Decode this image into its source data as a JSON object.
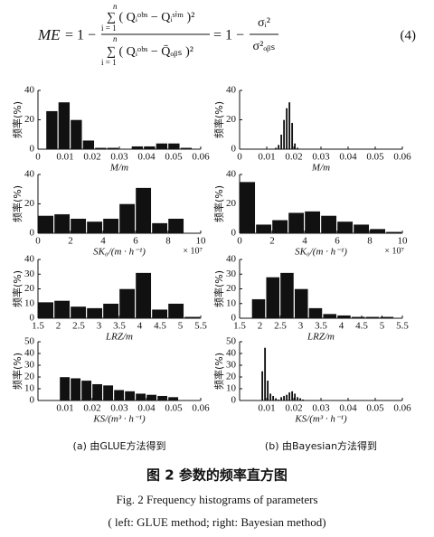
{
  "equation": {
    "lhs": "ME",
    "eq1": "= 1 −",
    "sum_upper": "n",
    "sum_lower": "i = 1",
    "numerator": "∑ ( Qᵢᵒᵇˢ −  Qᵢˢⁱᵐ )²",
    "denominator": "∑ ( Qᵢᵒᵇˢ −  Q̄ₒᵦₛ )²",
    "eq2": "= 1 −",
    "frac_num": "σᵢ²",
    "frac_den": "σ²ₒᵦₛ",
    "number": "(4)"
  },
  "chart_data": [
    {
      "type": "histogram",
      "xlabel": "M/m",
      "ylabel": "频率(%)",
      "color": "#111111",
      "bins": [
        0.003,
        0.0075,
        0.012,
        0.0165,
        0.021,
        0.0255,
        0.03,
        0.0345,
        0.039,
        0.0435,
        0.048,
        0.0525,
        0.057
      ],
      "values": [
        26,
        32,
        20,
        6,
        1,
        1,
        0,
        2,
        2,
        4,
        4,
        1
      ],
      "xlim": [
        0,
        0.06
      ],
      "ylim": [
        0,
        40
      ],
      "xticks": [
        0,
        0.01,
        0.02,
        0.03,
        0.04,
        0.05,
        0.06
      ],
      "yticks": [
        0,
        20,
        40
      ]
    },
    {
      "type": "histogram",
      "xlabel": "M/m",
      "ylabel": "频率(%)",
      "color": "#111111",
      "bins": [
        0.013,
        0.014,
        0.015,
        0.016,
        0.017,
        0.018,
        0.019,
        0.02,
        0.021,
        0.022
      ],
      "values": [
        1,
        3,
        10,
        20,
        28,
        32,
        18,
        4,
        1
      ],
      "xlim": [
        0,
        0.06
      ],
      "ylim": [
        0,
        40
      ],
      "xticks": [
        0,
        0.01,
        0.02,
        0.03,
        0.04,
        0.05,
        0.06
      ],
      "yticks": [
        0,
        20,
        40
      ]
    },
    {
      "type": "histogram",
      "xlabel": "SK₀/(m · h⁻¹)",
      "ylabel": "频率(%)",
      "x_multiplier": "× 10⁷",
      "color": "#111111",
      "bins": [
        0,
        1,
        2,
        3,
        4,
        5,
        6,
        7,
        8,
        9
      ],
      "values": [
        12,
        13,
        10,
        8,
        10,
        20,
        31,
        7,
        10
      ],
      "xlim": [
        0,
        10
      ],
      "ylim": [
        0,
        40
      ],
      "xticks": [
        0,
        2,
        4,
        6,
        8,
        10
      ],
      "yticks": [
        0,
        20,
        40
      ]
    },
    {
      "type": "histogram",
      "xlabel": "SK₀/(m · h⁻¹)",
      "ylabel": "频率(%)",
      "x_multiplier": "× 10⁷",
      "color": "#111111",
      "bins": [
        0,
        1,
        2,
        3,
        4,
        5,
        6,
        7,
        8,
        9,
        10
      ],
      "values": [
        35,
        6,
        9,
        14,
        15,
        12,
        8,
        6,
        3,
        1
      ],
      "xlim": [
        0,
        10
      ],
      "ylim": [
        0,
        40
      ],
      "xticks": [
        0,
        2,
        4,
        6,
        8,
        10
      ],
      "yticks": [
        0,
        20,
        40
      ]
    },
    {
      "type": "histogram",
      "xlabel": "LRZ/m",
      "ylabel": "频率(%)",
      "color": "#111111",
      "bins": [
        1.5,
        1.9,
        2.3,
        2.7,
        3.1,
        3.5,
        3.9,
        4.3,
        4.7,
        5.1,
        5.5
      ],
      "values": [
        11,
        12,
        8,
        7,
        10,
        20,
        31,
        6,
        10,
        1
      ],
      "xlim": [
        1.5,
        5.5
      ],
      "ylim": [
        0,
        40
      ],
      "xticks": [
        1.5,
        2,
        2.5,
        3,
        3.5,
        4,
        4.5,
        5,
        5.5
      ],
      "yticks": [
        0,
        10,
        20,
        30,
        40
      ]
    },
    {
      "type": "histogram",
      "xlabel": "LRZ/m",
      "ylabel": "频率(%)",
      "color": "#111111",
      "bins": [
        1.8,
        2.15,
        2.5,
        2.85,
        3.2,
        3.55,
        3.9,
        4.25,
        4.6,
        4.95,
        5.3
      ],
      "values": [
        13,
        28,
        31,
        20,
        7,
        3,
        2,
        1,
        1,
        1
      ],
      "xlim": [
        1.5,
        5.5
      ],
      "ylim": [
        0,
        40
      ],
      "xticks": [
        1.5,
        2,
        2.5,
        3,
        3.5,
        4,
        4.5,
        5,
        5.5
      ],
      "yticks": [
        0,
        10,
        20,
        30,
        40
      ]
    },
    {
      "type": "histogram",
      "xlabel": "KS/(m³ · h⁻¹)",
      "ylabel": "频率(%)",
      "color": "#111111",
      "bins": [
        0.008,
        0.012,
        0.016,
        0.02,
        0.024,
        0.028,
        0.032,
        0.036,
        0.04,
        0.044,
        0.048,
        0.052
      ],
      "values": [
        20,
        19,
        17,
        14,
        13,
        9,
        8,
        6,
        5,
        4,
        3
      ],
      "xlim": [
        0,
        0.06
      ],
      "ylim": [
        0,
        50
      ],
      "xticks": [
        0.01,
        0.02,
        0.03,
        0.04,
        0.05,
        0.06
      ],
      "yticks": [
        0,
        10,
        20,
        30,
        40,
        50
      ]
    },
    {
      "type": "histogram",
      "xlabel": "KS/(m³ · h⁻¹)",
      "ylabel": "频率(%)",
      "color": "#111111",
      "bins": [
        0.008,
        0.009,
        0.01,
        0.011,
        0.012,
        0.013,
        0.014,
        0.015,
        0.016,
        0.017,
        0.018,
        0.019,
        0.02,
        0.021,
        0.022,
        0.023,
        0.024
      ],
      "values": [
        25,
        45,
        17,
        6,
        4,
        2,
        1,
        3,
        4,
        5,
        7,
        8,
        6,
        3,
        2,
        1
      ],
      "xlim": [
        0,
        0.06
      ],
      "ylim": [
        0,
        50
      ],
      "xticks": [
        0.01,
        0.02,
        0.03,
        0.04,
        0.05,
        0.06
      ],
      "yticks": [
        0,
        10,
        20,
        30,
        40,
        50
      ]
    }
  ],
  "captions": {
    "sub_a": "(a) 由GLUE方法得到",
    "sub_b": "(b) 由Bayesian方法得到",
    "cn": "图 2    参数的频率直方图",
    "en": "Fig. 2    Frequency histograms of parameters",
    "note": "( left: GLUE method; right: Bayesian method)"
  }
}
